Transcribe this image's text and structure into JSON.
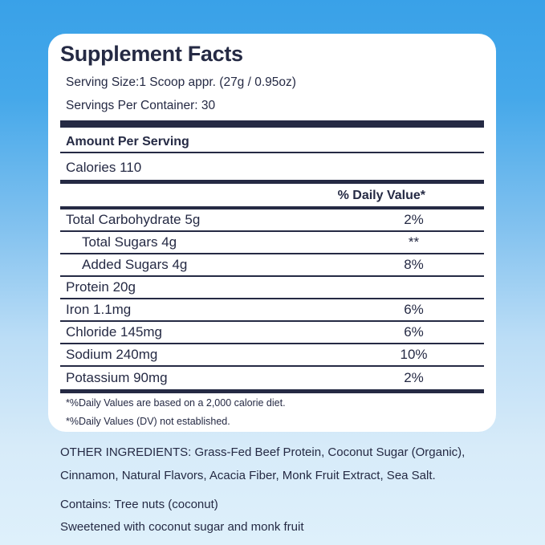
{
  "colors": {
    "ink": "#252A44",
    "card_background": "#FFFFFF",
    "background_top": "#39A1E8",
    "background_bottom": "#DEF0FB"
  },
  "panel": {
    "title": "Supplement Facts",
    "serving_size": "Serving Size:1 Scoop appr. (27g / 0.95oz)",
    "servings_per_container": "Servings Per Container: 30",
    "amount_per_serving": "Amount Per Serving",
    "calories": "Calories 110",
    "daily_value_header": "% Daily Value*",
    "rows": [
      {
        "label": "Total Carbohydrate 5g",
        "value": "2%",
        "indent": false
      },
      {
        "label": "Total Sugars 4g",
        "value": "**",
        "indent": true
      },
      {
        "label": "Added Sugars 4g",
        "value": "8%",
        "indent": true
      },
      {
        "label": "Protein 20g",
        "value": "",
        "indent": false
      },
      {
        "label": "Iron 1.1mg",
        "value": "6%",
        "indent": false
      },
      {
        "label": "Chloride 145mg",
        "value": "6%",
        "indent": false
      },
      {
        "label": "Sodium 240mg",
        "value": "10%",
        "indent": false
      },
      {
        "label": "Potassium 90mg",
        "value": "2%",
        "indent": false
      }
    ],
    "footnotes": [
      "*%Daily Values are based on a 2,000 calorie diet.",
      "*%Daily Values (DV) not established."
    ]
  },
  "below": {
    "other_ingredients": "OTHER INGREDIENTS: Grass-Fed Beef Protein, Coconut Sugar (Organic), Cinnamon, Natural Flavors, Acacia Fiber, Monk Fruit Extract, Sea Salt.",
    "contains": "Contains: Tree nuts (coconut)",
    "sweetened": "Sweetened with coconut sugar and monk fruit"
  }
}
